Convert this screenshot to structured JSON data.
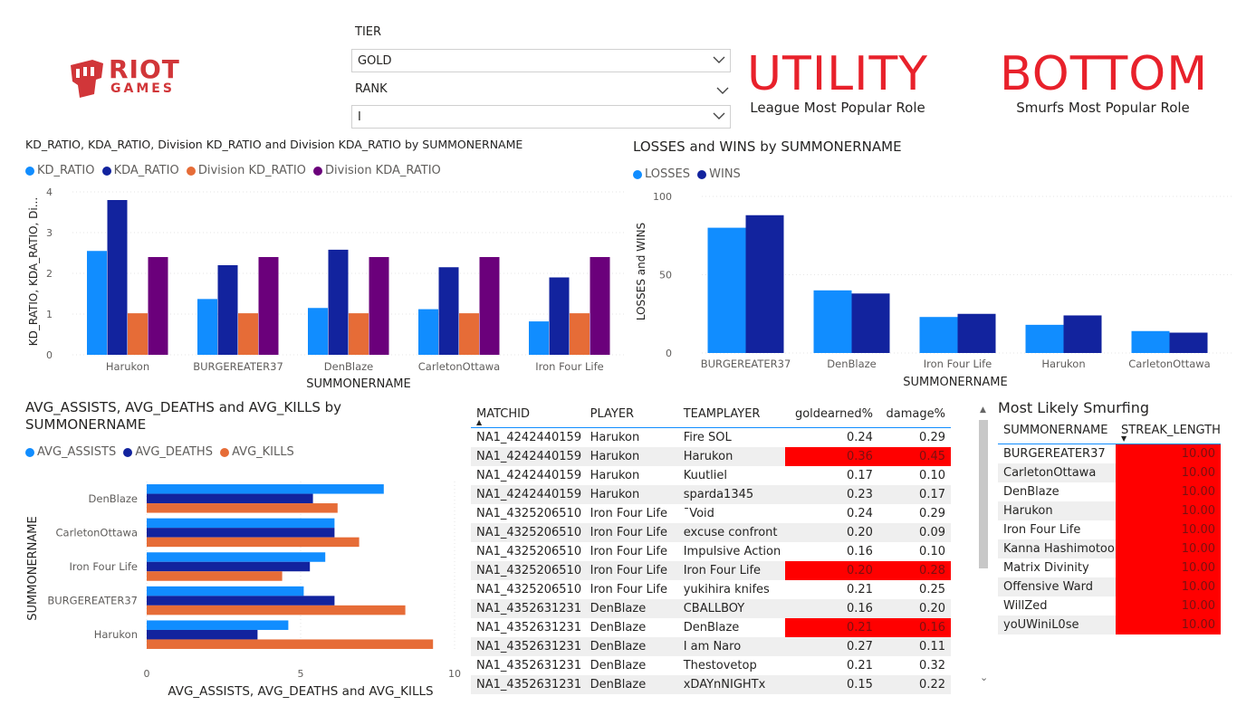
{
  "logo": {
    "line1": "RIOT",
    "line2": "GAMES"
  },
  "slicers": {
    "tier_label": "TIER",
    "tier_value": "GOLD",
    "rank_label": "RANK",
    "rank_value": "I"
  },
  "cards": [
    {
      "value": "UTILITY",
      "caption": "League Most Popular Role"
    },
    {
      "value": "BOTTOM",
      "caption": "Smurfs Most Popular Role"
    }
  ],
  "colors": {
    "accent_red": "#e8212b",
    "light_blue": "#118dff",
    "dark_blue": "#12239e",
    "orange": "#e66c37",
    "purple": "#6b007b",
    "highlight": "#ff0000"
  },
  "kd_chart": {
    "title": "KD_RATIO, KDA_RATIO, Division KD_RATIO and Division KDA_RATIO by SUMMONERNAME",
    "legend": [
      "KD_RATIO",
      "KDA_RATIO",
      "Division KD_RATIO",
      "Division KDA_RATIO"
    ],
    "ylabel": "KD_RATIO, KDA_RATIO, Di...",
    "xlabel": "SUMMONERNAME",
    "yticks": [
      "0",
      "1",
      "2",
      "3",
      "4"
    ]
  },
  "lw_chart": {
    "title": "LOSSES and WINS by SUMMONERNAME",
    "legend": [
      "LOSSES",
      "WINS"
    ],
    "ylabel": "LOSSES and WINS",
    "xlabel": "SUMMONERNAME",
    "yticks": [
      "0",
      "50",
      "100"
    ]
  },
  "avg_chart": {
    "title_line1": "AVG_ASSISTS, AVG_DEATHS and AVG_KILLS by",
    "title_line2": "SUMMONERNAME",
    "legend": [
      "AVG_ASSISTS",
      "AVG_DEATHS",
      "AVG_KILLS"
    ],
    "ylabel": "SUMMONERNAME",
    "xlabel": "AVG_ASSISTS, AVG_DEATHS and AVG_KILLS",
    "xticks": [
      "0",
      "5",
      "10"
    ]
  },
  "chart_data": [
    {
      "type": "bar",
      "categories": [
        "Harukon",
        "BURGEREATER37",
        "DenBlaze",
        "CarletonOttawa",
        "Iron Four Life"
      ],
      "series": [
        {
          "name": "KD_RATIO",
          "values": [
            2.55,
            1.37,
            1.15,
            1.12,
            0.82
          ]
        },
        {
          "name": "KDA_RATIO",
          "values": [
            3.8,
            2.2,
            2.58,
            2.15,
            1.9
          ]
        },
        {
          "name": "Division KD_RATIO",
          "values": [
            1.02,
            1.02,
            1.02,
            1.02,
            1.02
          ]
        },
        {
          "name": "Division KDA_RATIO",
          "values": [
            2.4,
            2.4,
            2.4,
            2.4,
            2.4
          ]
        }
      ],
      "ylim": [
        0,
        4
      ]
    },
    {
      "type": "bar",
      "categories": [
        "BURGEREATER37",
        "DenBlaze",
        "Iron Four Life",
        "Harukon",
        "CarletonOttawa"
      ],
      "series": [
        {
          "name": "LOSSES",
          "values": [
            80,
            40,
            23,
            18,
            14
          ]
        },
        {
          "name": "WINS",
          "values": [
            88,
            38,
            25,
            24,
            13
          ]
        }
      ],
      "ylim": [
        0,
        100
      ]
    },
    {
      "type": "bar",
      "orientation": "horizontal",
      "categories": [
        "DenBlaze",
        "CarletonOttawa",
        "Iron Four Life",
        "BURGEREATER37",
        "Harukon"
      ],
      "series": [
        {
          "name": "AVG_ASSISTS",
          "values": [
            7.7,
            6.1,
            5.8,
            5.1,
            4.6
          ]
        },
        {
          "name": "AVG_DEATHS",
          "values": [
            5.4,
            6.1,
            5.3,
            6.1,
            3.6
          ]
        },
        {
          "name": "AVG_KILLS",
          "values": [
            6.2,
            6.9,
            4.4,
            8.4,
            9.3
          ]
        }
      ],
      "xlim": [
        0,
        10
      ]
    }
  ],
  "match_table": {
    "headers": [
      "MATCHID",
      "PLAYER",
      "TEAMPLAYER",
      "goldearned%",
      "damage%"
    ],
    "rows": [
      {
        "matchid": "NA1_4242440159",
        "player": "Harukon",
        "teamplayer": "Fire SOL",
        "gold": "0.24",
        "damage": "0.29",
        "hl": false
      },
      {
        "matchid": "NA1_4242440159",
        "player": "Harukon",
        "teamplayer": "Harukon",
        "gold": "0.36",
        "damage": "0.45",
        "hl": true
      },
      {
        "matchid": "NA1_4242440159",
        "player": "Harukon",
        "teamplayer": "Kuutliel",
        "gold": "0.17",
        "damage": "0.10",
        "hl": false
      },
      {
        "matchid": "NA1_4242440159",
        "player": "Harukon",
        "teamplayer": "sparda1345",
        "gold": "0.23",
        "damage": "0.17",
        "hl": false
      },
      {
        "matchid": "NA1_4325206510",
        "player": "Iron Four Life",
        "teamplayer": "¯Void",
        "gold": "0.24",
        "damage": "0.29",
        "hl": false
      },
      {
        "matchid": "NA1_4325206510",
        "player": "Iron Four Life",
        "teamplayer": "excuse confront",
        "gold": "0.20",
        "damage": "0.09",
        "hl": false
      },
      {
        "matchid": "NA1_4325206510",
        "player": "Iron Four Life",
        "teamplayer": "Impulsive Action",
        "gold": "0.16",
        "damage": "0.10",
        "hl": false
      },
      {
        "matchid": "NA1_4325206510",
        "player": "Iron Four Life",
        "teamplayer": "Iron Four Life",
        "gold": "0.20",
        "damage": "0.28",
        "hl": true
      },
      {
        "matchid": "NA1_4325206510",
        "player": "Iron Four Life",
        "teamplayer": "yukihira knifes",
        "gold": "0.21",
        "damage": "0.25",
        "hl": false
      },
      {
        "matchid": "NA1_4352631231",
        "player": "DenBlaze",
        "teamplayer": "CBALLBOY",
        "gold": "0.16",
        "damage": "0.20",
        "hl": false
      },
      {
        "matchid": "NA1_4352631231",
        "player": "DenBlaze",
        "teamplayer": "DenBlaze",
        "gold": "0.21",
        "damage": "0.16",
        "hl": true
      },
      {
        "matchid": "NA1_4352631231",
        "player": "DenBlaze",
        "teamplayer": "I am Naro",
        "gold": "0.27",
        "damage": "0.11",
        "hl": false
      },
      {
        "matchid": "NA1_4352631231",
        "player": "DenBlaze",
        "teamplayer": "Thestovetop",
        "gold": "0.21",
        "damage": "0.32",
        "hl": false
      },
      {
        "matchid": "NA1_4352631231",
        "player": "DenBlaze",
        "teamplayer": "xDAYnNIGHTx",
        "gold": "0.15",
        "damage": "0.22",
        "hl": false
      }
    ]
  },
  "smurf_table": {
    "title": "Most Likely Smurfing",
    "headers": [
      "SUMMONERNAME",
      "STREAK_LENGTH"
    ],
    "rows": [
      {
        "name": "BURGEREATER37",
        "streak": "10.00"
      },
      {
        "name": "CarletonOttawa",
        "streak": "10.00"
      },
      {
        "name": "DenBlaze",
        "streak": "10.00"
      },
      {
        "name": "Harukon",
        "streak": "10.00"
      },
      {
        "name": "Iron Four Life",
        "streak": "10.00"
      },
      {
        "name": "Kanna Hashimotoo",
        "streak": "10.00"
      },
      {
        "name": "Matrix Divinity",
        "streak": "10.00"
      },
      {
        "name": "Offensive Ward",
        "streak": "10.00"
      },
      {
        "name": "WillZed",
        "streak": "10.00"
      },
      {
        "name": "yoUWiniL0se",
        "streak": "10.00"
      }
    ]
  }
}
